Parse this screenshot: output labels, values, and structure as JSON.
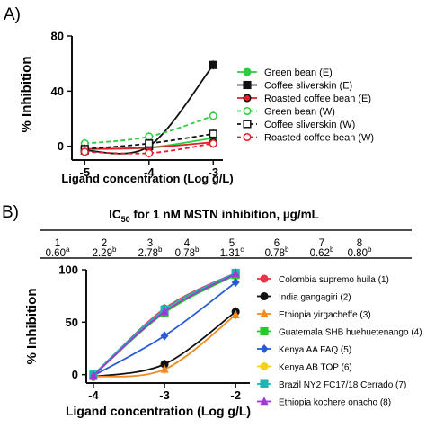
{
  "chart_data": [
    {
      "panel_label": "A)",
      "type": "line",
      "xlabel": "Ligand concentration (Log g/L)",
      "ylabel": "% Inhibition",
      "x": [
        -5,
        -4,
        -3
      ],
      "xticks": [
        "-5",
        "-4",
        "-3"
      ],
      "yticks": [
        "0",
        "40",
        "80"
      ],
      "xlim": [
        -5.2,
        -2.85
      ],
      "ylim": [
        -10,
        80
      ],
      "grid": false,
      "legend_position": "right",
      "series": [
        {
          "name": "Green bean (E)",
          "values": [
            -2,
            -1,
            6
          ],
          "color": "#2ecc40",
          "marker": "circle-filled",
          "dash": "solid"
        },
        {
          "name": "Coffee sliverskin (E)",
          "values": [
            -3,
            0,
            59
          ],
          "color": "#111111",
          "marker": "square-filled",
          "dash": "solid"
        },
        {
          "name": " Roasted coffee bean (E)",
          "values": [
            -2,
            -1,
            3
          ],
          "color": "#e0202a",
          "marker": "circle-filled-dark",
          "dash": "solid"
        },
        {
          "name": "Green bean (W)",
          "values": [
            2,
            7,
            22
          ],
          "color": "#2ecc40",
          "marker": "circle-open",
          "dash": "dashed"
        },
        {
          "name": "Coffee sliverskin (W)",
          "values": [
            -2,
            2,
            9
          ],
          "color": "#111111",
          "marker": "square-open",
          "dash": "dashed"
        },
        {
          "name": "Roasted coffee bean (W)",
          "values": [
            -4,
            -5,
            2
          ],
          "color": "#e0202a",
          "marker": "circle-open",
          "dash": "dashed"
        }
      ]
    },
    {
      "panel_label": "B)",
      "type": "line",
      "xlabel": "Ligand concentration (Log g/L)",
      "ylabel": "% Inhibition",
      "x": [
        -4,
        -3,
        -2
      ],
      "xticks": [
        "-4",
        "-3",
        "-2"
      ],
      "yticks": [
        "0",
        "50",
        "100"
      ],
      "xlim": [
        -4.1,
        -1.8
      ],
      "ylim": [
        -8,
        100
      ],
      "grid": false,
      "legend_position": "right",
      "table": {
        "title": "IC",
        "title_sub": "50",
        "title_rest": " for 1 nM MSTN inhibition, µg/mL",
        "headers": [
          "1",
          "2",
          "3",
          "4",
          "5",
          "6",
          "7",
          "8"
        ],
        "values": [
          "0.60",
          "2.29",
          "2.78",
          "0.78",
          "1.31",
          "0.78",
          "0.62",
          "0.80"
        ],
        "superscripts": [
          "a",
          "b",
          "b",
          "b",
          "c",
          "b",
          "b",
          "b"
        ]
      },
      "series": [
        {
          "name": "Colombia supremo huila (1)",
          "values": [
            -1,
            63,
            97
          ],
          "color": "#e8344a",
          "marker": "circle"
        },
        {
          "name": "India gangagiri (2)",
          "values": [
            -2,
            10,
            60
          ],
          "color": "#111111",
          "marker": "circle"
        },
        {
          "name": "Ethiopia yirgacheffe (3)",
          "values": [
            -2,
            5,
            57
          ],
          "color": "#f08a24",
          "marker": "triangle"
        },
        {
          "name": "Guatemala SHB huehuetenango (4)",
          "values": [
            -1,
            59,
            95
          ],
          "color": "#22cc22",
          "marker": "square"
        },
        {
          "name": "Kenya AA FAQ (5)",
          "values": [
            -1,
            37,
            88
          ],
          "color": "#2a5bd7",
          "marker": "diamond"
        },
        {
          "name": "Kenya AB TOP (6)",
          "values": [
            -1,
            61,
            96
          ],
          "color": "#f2d21b",
          "marker": "circle"
        },
        {
          "name": "Brazil NY2 FC17/18 Cerrado (7)",
          "values": [
            0,
            62,
            97
          ],
          "color": "#1fb5b5",
          "marker": "square"
        },
        {
          "name": "Ethiopia kochere onacho (8)",
          "values": [
            -1,
            60,
            96
          ],
          "color": "#a236d6",
          "marker": "triangle"
        }
      ]
    }
  ]
}
